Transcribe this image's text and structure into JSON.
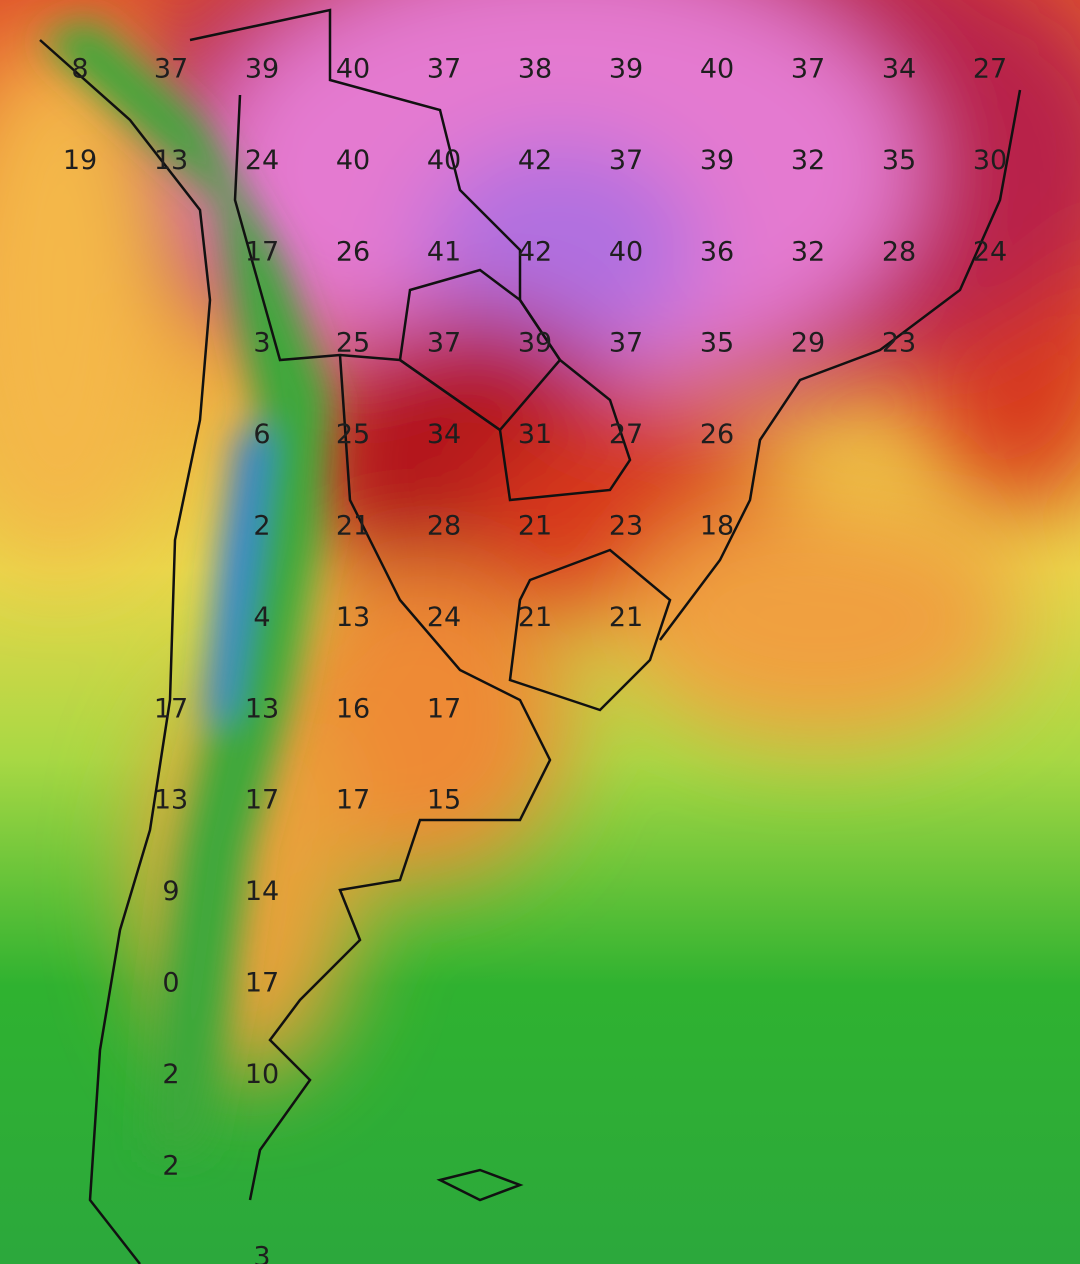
{
  "map": {
    "labels": {
      "rows": [
        [
          8,
          37,
          39,
          40,
          37,
          38,
          39,
          40,
          37,
          34,
          27
        ],
        [
          19,
          13,
          24,
          40,
          40,
          42,
          37,
          39,
          32,
          35,
          30
        ],
        [
          null,
          null,
          17,
          26,
          41,
          42,
          40,
          36,
          32,
          28,
          24
        ],
        [
          null,
          null,
          3,
          25,
          37,
          39,
          37,
          35,
          29,
          23,
          null
        ],
        [
          null,
          null,
          6,
          25,
          34,
          31,
          27,
          26,
          null,
          null,
          null
        ],
        [
          null,
          null,
          2,
          21,
          28,
          21,
          23,
          18,
          null,
          null,
          null
        ],
        [
          null,
          null,
          4,
          13,
          24,
          21,
          21,
          null,
          null,
          null,
          null
        ],
        [
          null,
          17,
          13,
          16,
          17,
          null,
          null,
          null,
          null,
          null,
          null
        ],
        [
          null,
          13,
          17,
          17,
          15,
          null,
          null,
          null,
          null,
          null,
          null
        ],
        [
          null,
          9,
          14,
          null,
          null,
          null,
          null,
          null,
          null,
          null,
          null
        ],
        [
          null,
          0,
          17,
          null,
          null,
          null,
          null,
          null,
          null,
          null,
          null
        ],
        [
          null,
          2,
          10,
          null,
          null,
          null,
          null,
          null,
          null,
          null,
          null
        ],
        [
          null,
          2,
          null,
          null,
          null,
          null,
          null,
          null,
          null,
          null,
          null
        ],
        [
          null,
          null,
          3,
          null,
          null,
          null,
          null,
          null,
          null,
          null,
          null
        ]
      ]
    }
  }
}
